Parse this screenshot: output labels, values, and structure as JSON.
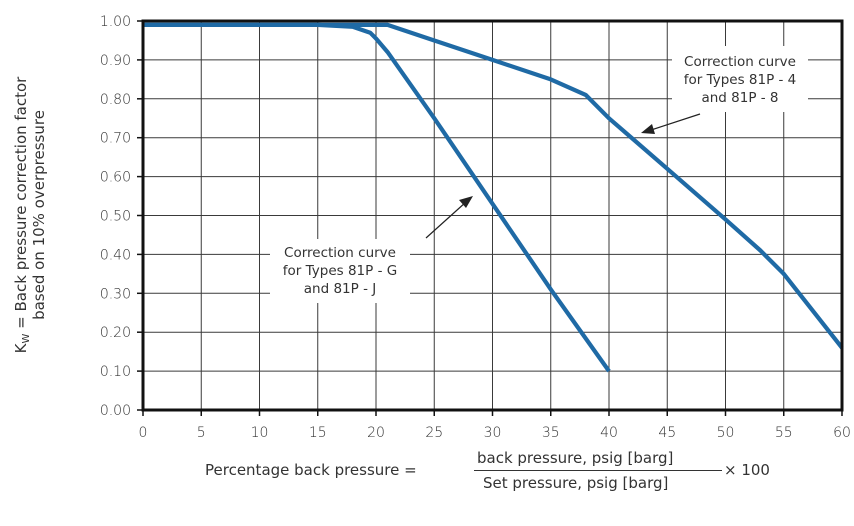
{
  "chart_data": {
    "type": "line",
    "ylabel_main": "K",
    "ylabel_sub": "W",
    "ylabel_rest": " = Back pressure correction factor",
    "ylabel_line2": "based on 10% overpressure",
    "xlabel": {
      "prefix": "Percentage back pressure =",
      "numerator": "back pressure, psig [barg]",
      "denominator": "Set pressure, psig [barg]",
      "suffix": "× 100"
    },
    "xlim": [
      0,
      60
    ],
    "ylim": [
      0,
      1.0
    ],
    "xticks": [
      "0",
      "5",
      "10",
      "15",
      "20",
      "25",
      "30",
      "35",
      "40",
      "45",
      "50",
      "55",
      "60"
    ],
    "yticks": [
      "0.00",
      "0.10",
      "0.20",
      "0.30",
      "0.40",
      "0.50",
      "0.60",
      "0.70",
      "0.80",
      "0.90",
      "1.00"
    ],
    "grid": true,
    "line_color": "#1f6aa5",
    "series": [
      {
        "key": "types_81p_4_8",
        "x": [
          0,
          20,
          21,
          25,
          30,
          35,
          38,
          40,
          45,
          50,
          53,
          55,
          60
        ],
        "y": [
          0.99,
          0.99,
          0.99,
          0.95,
          0.9,
          0.85,
          0.81,
          0.75,
          0.62,
          0.49,
          0.41,
          0.35,
          0.16
        ]
      },
      {
        "key": "types_81p_g_j",
        "x": [
          0,
          15,
          18,
          19.5,
          20,
          21,
          25,
          30,
          35,
          40
        ],
        "y": [
          0.99,
          0.99,
          0.985,
          0.97,
          0.955,
          0.92,
          0.75,
          0.53,
          0.31,
          0.1
        ]
      }
    ],
    "annotations": [
      {
        "series": "types_81p_4_8",
        "lines": [
          "Correction curve",
          "for Types 81P - 4",
          "and 81P - 8"
        ]
      },
      {
        "series": "types_81p_g_j",
        "lines": [
          "Correction curve",
          "for Types 81P - G",
          "and 81P - J"
        ]
      }
    ]
  }
}
